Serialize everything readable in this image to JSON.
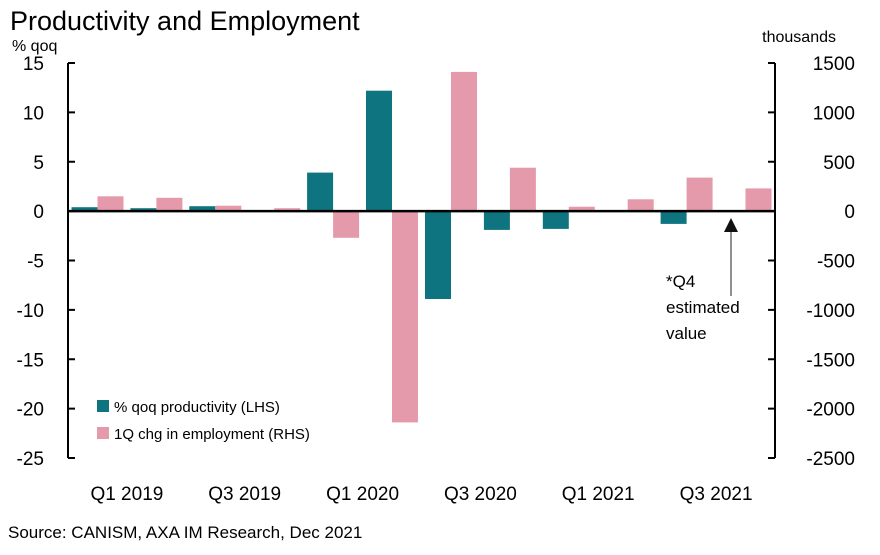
{
  "chart_data": {
    "type": "bar",
    "title": "Productivity and Employment",
    "ylabel_left": "% qoq",
    "ylabel_right": "thousands",
    "y_left_lim": [
      -25,
      15
    ],
    "y_left_ticks": [
      "15",
      "10",
      "5",
      "0",
      "-5",
      "-10",
      "-15",
      "-20",
      "-25"
    ],
    "y_right_lim": [
      -2500,
      1500
    ],
    "y_right_ticks": [
      "1500",
      "1000",
      "500",
      "0",
      "-500",
      "-1000",
      "-1500",
      "-2000",
      "-2500"
    ],
    "categories": [
      "Q1 2019",
      "Q2 2019",
      "Q3 2019",
      "Q4 2019",
      "Q1 2020",
      "Q2 2020",
      "Q3 2020",
      "Q4 2020",
      "Q1 2021",
      "Q2 2021",
      "Q3 2021",
      "Q4 2021"
    ],
    "x_tick_labels": [
      "Q1 2019",
      "Q3 2019",
      "Q1 2020",
      "Q3 2020",
      "Q1 2021",
      "Q3 2021"
    ],
    "series": [
      {
        "name": "% qoq productivity (LHS)",
        "axis": "left",
        "color": "#0e7580",
        "values": [
          0.4,
          0.3,
          0.5,
          0.0,
          3.9,
          12.2,
          -8.9,
          -1.9,
          -1.8,
          0.0,
          -1.3,
          null
        ]
      },
      {
        "name": "1Q chg in employment (RHS)",
        "axis": "right",
        "color": "#e59aab",
        "values": [
          150,
          135,
          55,
          30,
          -270,
          -2140,
          1410,
          440,
          45,
          120,
          340,
          230
        ]
      }
    ],
    "legend_position": "bottom-left",
    "annotation": {
      "lines": [
        "*Q4",
        "estimated",
        "value"
      ]
    },
    "grid": false
  },
  "source": "Source: CANISM, AXA IM Research, Dec 2021"
}
